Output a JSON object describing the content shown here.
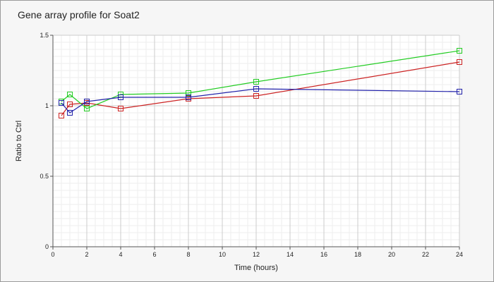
{
  "chart_data": {
    "type": "line",
    "title": "Gene array profile for Soat2",
    "xlabel": "Time (hours)",
    "ylabel": "Ratio to Ctrl",
    "xlim": [
      0,
      24
    ],
    "ylim": [
      0,
      1.5
    ],
    "x_ticks": [
      "0",
      "2",
      "4",
      "6",
      "8",
      "10",
      "12",
      "14",
      "16",
      "18",
      "20",
      "22",
      "24"
    ],
    "y_ticks": [
      "0",
      "0.5",
      "1",
      "1.5"
    ],
    "grid": true,
    "legend": "none",
    "x": [
      0.5,
      1,
      2,
      4,
      8,
      12,
      24
    ],
    "series": [
      {
        "color": "#cc2222",
        "values": [
          0.93,
          1.01,
          1.02,
          0.98,
          1.05,
          1.07,
          1.31
        ]
      },
      {
        "color": "#22cc22",
        "values": [
          1.03,
          1.08,
          0.98,
          1.08,
          1.09,
          1.17,
          1.39
        ]
      },
      {
        "color": "#2222aa",
        "values": [
          1.02,
          0.95,
          1.03,
          1.06,
          1.06,
          1.12,
          1.1
        ]
      }
    ]
  }
}
